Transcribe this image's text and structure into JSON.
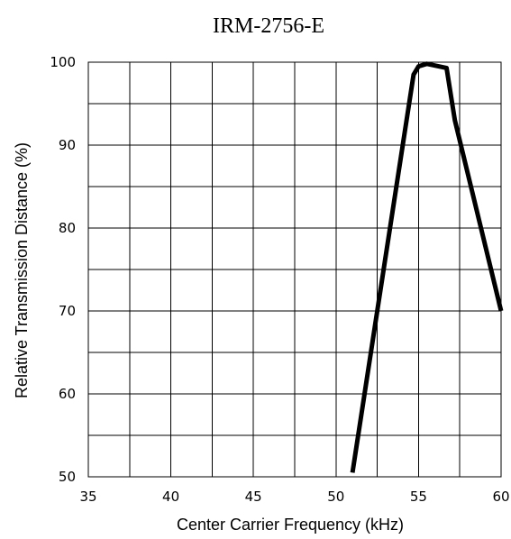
{
  "chart_data": {
    "type": "line",
    "title": "IRM-2756-E",
    "xlabel": "Center Carrier Frequency  (kHz)",
    "ylabel": "Relative Transmission Distance (%)",
    "xlim": [
      35,
      60
    ],
    "ylim": [
      50,
      100
    ],
    "xticks": [
      "35",
      "40",
      "45",
      "50",
      "55",
      "60"
    ],
    "yticks": [
      "50",
      "60",
      "70",
      "80",
      "90",
      "100"
    ],
    "grid": true,
    "series": [
      {
        "x": [
          51.0,
          52.5,
          54.7,
          55.0,
          55.5,
          56.7,
          57.2,
          60.0
        ],
        "y": [
          50.5,
          70.0,
          98.5,
          99.5,
          99.8,
          99.3,
          93.0,
          70.0
        ]
      }
    ]
  }
}
